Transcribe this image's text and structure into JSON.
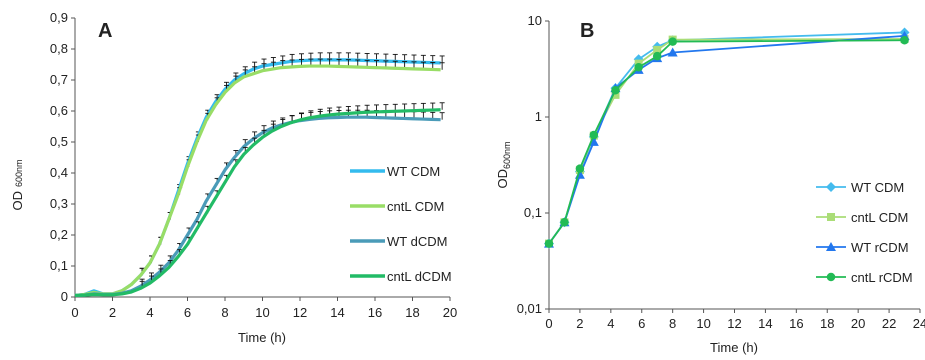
{
  "chart_data": [
    {
      "type": "line",
      "panel_label": "A",
      "xlabel": "Time (h)",
      "ylabel_main": "OD",
      "ylabel_sub": "600nm",
      "xlim": [
        0,
        20
      ],
      "ylim": [
        0,
        0.9
      ],
      "x_ticks": [
        "0",
        "2",
        "4",
        "6",
        "8",
        "10",
        "12",
        "14",
        "16",
        "18",
        "20"
      ],
      "y_ticks": [
        "0",
        "0,1",
        "0,2",
        "0,3",
        "0,4",
        "0,5",
        "0,6",
        "0,7",
        "0,8",
        "0,9"
      ],
      "grid": false,
      "legend_position": "right",
      "error_bars": true,
      "x": [
        0,
        0.5,
        1,
        1.5,
        2,
        2.5,
        3,
        3.5,
        4,
        4.5,
        5,
        5.5,
        6,
        6.5,
        7,
        7.5,
        8,
        8.5,
        9,
        9.5,
        10,
        10.5,
        11,
        11.5,
        12,
        12.5,
        13,
        13.5,
        14,
        14.5,
        15,
        15.5,
        16,
        16.5,
        17,
        17.5,
        18,
        18.5,
        19,
        19.5
      ],
      "series": [
        {
          "name": "WT CDM",
          "color": "#33bbee",
          "values": [
            0.005,
            0.008,
            0.02,
            0.01,
            0.01,
            0.02,
            0.04,
            0.07,
            0.11,
            0.17,
            0.25,
            0.34,
            0.43,
            0.51,
            0.58,
            0.63,
            0.67,
            0.7,
            0.72,
            0.735,
            0.745,
            0.75,
            0.755,
            0.76,
            0.762,
            0.764,
            0.765,
            0.765,
            0.765,
            0.765,
            0.764,
            0.763,
            0.762,
            0.761,
            0.76,
            0.759,
            0.758,
            0.757,
            0.756,
            0.755
          ]
        },
        {
          "name": "cntL CDM",
          "color": "#99dd66",
          "values": [
            0.005,
            0.008,
            0.015,
            0.01,
            0.01,
            0.02,
            0.04,
            0.07,
            0.11,
            0.17,
            0.25,
            0.33,
            0.42,
            0.5,
            0.57,
            0.62,
            0.66,
            0.69,
            0.71,
            0.72,
            0.73,
            0.735,
            0.74,
            0.742,
            0.744,
            0.745,
            0.745,
            0.745,
            0.744,
            0.743,
            0.742,
            0.741,
            0.74,
            0.739,
            0.738,
            0.737,
            0.736,
            0.735,
            0.734,
            0.733
          ]
        },
        {
          "name": "WT dCDM",
          "color": "#4a9bb8",
          "values": [
            0.005,
            0.006,
            0.01,
            0.008,
            0.008,
            0.012,
            0.02,
            0.035,
            0.055,
            0.08,
            0.11,
            0.15,
            0.2,
            0.25,
            0.31,
            0.36,
            0.41,
            0.45,
            0.485,
            0.51,
            0.53,
            0.545,
            0.555,
            0.563,
            0.569,
            0.573,
            0.576,
            0.578,
            0.579,
            0.58,
            0.58,
            0.58,
            0.579,
            0.578,
            0.577,
            0.576,
            0.575,
            0.574,
            0.573,
            0.572
          ]
        },
        {
          "name": "cntL dCDM",
          "color": "#22bb66",
          "values": [
            0.005,
            0.006,
            0.008,
            0.007,
            0.007,
            0.01,
            0.016,
            0.028,
            0.045,
            0.068,
            0.095,
            0.13,
            0.17,
            0.22,
            0.27,
            0.32,
            0.37,
            0.42,
            0.46,
            0.49,
            0.515,
            0.535,
            0.55,
            0.562,
            0.571,
            0.578,
            0.583,
            0.587,
            0.59,
            0.592,
            0.594,
            0.596,
            0.597,
            0.598,
            0.599,
            0.6,
            0.601,
            0.602,
            0.603,
            0.604
          ]
        }
      ]
    },
    {
      "type": "line",
      "panel_label": "B",
      "xlabel": "Time (h)",
      "ylabel_main": "OD",
      "ylabel_sub": "600nm",
      "y_scale": "log",
      "xlim": [
        0,
        24
      ],
      "ylim": [
        0.01,
        10
      ],
      "x_ticks": [
        "0",
        "2",
        "4",
        "6",
        "8",
        "10",
        "12",
        "14",
        "16",
        "18",
        "20",
        "22",
        "24"
      ],
      "y_ticks": [
        "0,01",
        "0,1",
        "1",
        "10"
      ],
      "grid": false,
      "legend_position": "right",
      "x": [
        0,
        1,
        2,
        2.9,
        4.3,
        5.8,
        7,
        8,
        23
      ],
      "series": [
        {
          "name": "WT CDM",
          "color": "#44bbee",
          "marker": "diamond",
          "values": [
            0.048,
            0.08,
            0.27,
            0.62,
            2.0,
            4.0,
            5.4,
            6.3,
            7.6
          ]
        },
        {
          "name": "cntL CDM",
          "color": "#aadd77",
          "marker": "square",
          "values": [
            0.048,
            0.08,
            0.28,
            0.64,
            1.7,
            3.6,
            5.0,
            6.4,
            6.5
          ]
        },
        {
          "name": "WT rCDM",
          "color": "#2277ee",
          "marker": "triangle",
          "values": [
            0.048,
            0.08,
            0.25,
            0.55,
            2.0,
            3.1,
            4.1,
            4.7,
            7.0
          ]
        },
        {
          "name": "cntL rCDM",
          "color": "#22bb55",
          "marker": "circle",
          "values": [
            0.048,
            0.08,
            0.29,
            0.65,
            1.9,
            3.3,
            4.3,
            6.1,
            6.3
          ]
        }
      ]
    }
  ]
}
